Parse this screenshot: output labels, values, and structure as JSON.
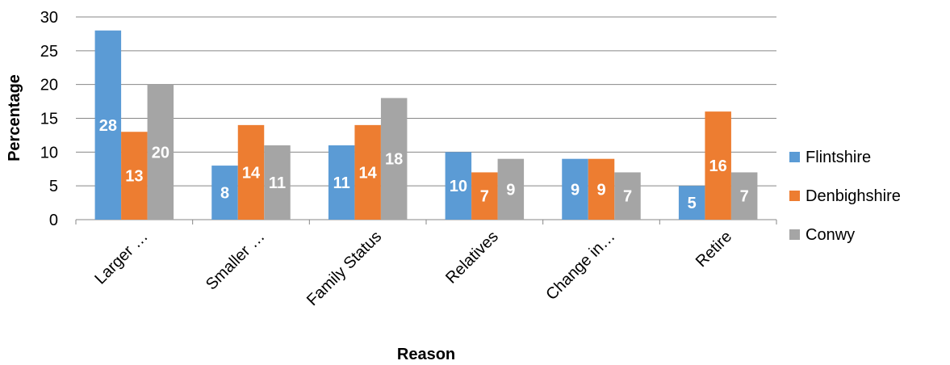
{
  "chart_data": {
    "type": "bar",
    "title": "",
    "xlabel": "Reason",
    "ylabel": "Percentage",
    "categories": [
      "Larger …",
      "Smaller …",
      "Family Status",
      "Relatives",
      "Change in…",
      "Retire"
    ],
    "series": [
      {
        "name": "Flintshire",
        "color": "#5b9bd5",
        "values": [
          28,
          8,
          11,
          10,
          9,
          5
        ]
      },
      {
        "name": "Denbighshire",
        "color": "#ed7d31",
        "values": [
          13,
          14,
          14,
          7,
          9,
          16
        ]
      },
      {
        "name": "Conwy",
        "color": "#a5a5a5",
        "values": [
          20,
          11,
          18,
          9,
          7,
          7
        ]
      }
    ],
    "ylim": [
      0,
      30
    ],
    "yticks": [
      0,
      5,
      10,
      15,
      20,
      25,
      30
    ],
    "grid": true,
    "legend_position": "right",
    "data_labels": true
  }
}
